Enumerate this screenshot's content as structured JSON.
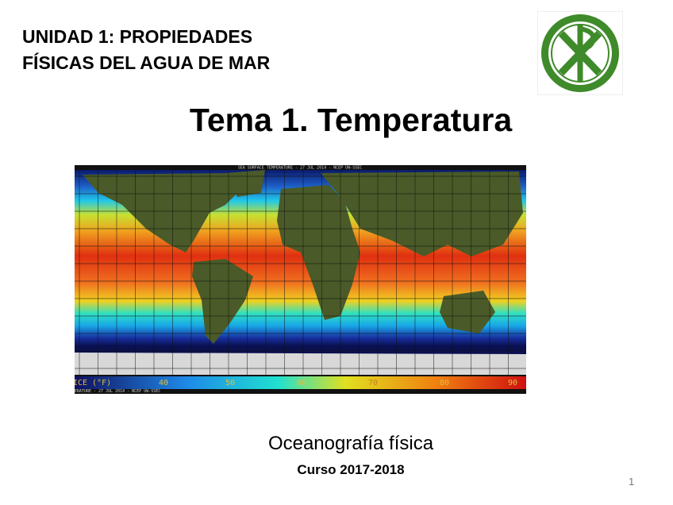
{
  "header": {
    "title_lines": [
      "UNIDAD 1: PROPIEDADES",
      "FÍSICAS DEL AGUA DE MAR"
    ]
  },
  "slide": {
    "title": "Tema 1. Temperatura",
    "subtitle": "Oceanografía física",
    "course": "Curso 2017-2018",
    "page_number": "1"
  },
  "map": {
    "caption": "SEA SURFACE TEMPERATURE - 27 JUL 2014 - NCEP UW-SSEC",
    "legend_title": "ICE (°F)",
    "legend_labels": [
      "40",
      "50",
      "60",
      "70",
      "80",
      "90"
    ]
  }
}
